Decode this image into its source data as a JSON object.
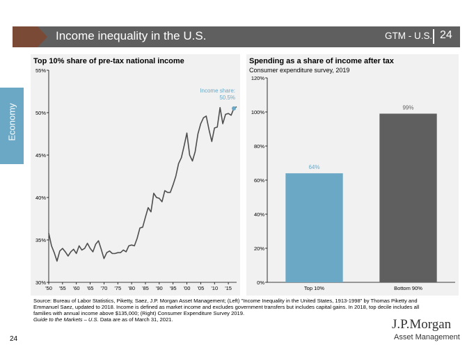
{
  "header": {
    "title": "Income inequality in the U.S.",
    "section": "GTM - U.S.",
    "page": "24",
    "bar_color": "#5f5f5f",
    "arrow_color": "#7a4a36"
  },
  "sidebar": {
    "label": "Economy",
    "color": "#6aa8c6"
  },
  "chart_data": [
    {
      "type": "line",
      "title": "Top 10% share of pre-tax national income",
      "xlabel": "",
      "ylabel": "",
      "xlim": [
        1950,
        2018
      ],
      "ylim": [
        30,
        55
      ],
      "y_ticks": [
        "30%",
        "35%",
        "40%",
        "45%",
        "50%",
        "55%"
      ],
      "x_ticks": [
        "'50",
        "'55",
        "'60",
        "'65",
        "'70",
        "'75",
        "'80",
        "'85",
        "'90",
        "'95",
        "'00",
        "'05",
        "'10",
        "'15"
      ],
      "annotation_label": "Income share:",
      "annotation_value": "50.5%",
      "line_color": "#4d4d4d",
      "marker_color": "#6aa8c6",
      "series": [
        {
          "name": "Top 10% share",
          "x": [
            1950,
            1951,
            1952,
            1953,
            1954,
            1955,
            1956,
            1957,
            1958,
            1959,
            1960,
            1961,
            1962,
            1963,
            1964,
            1965,
            1966,
            1967,
            1968,
            1969,
            1970,
            1971,
            1972,
            1973,
            1974,
            1975,
            1976,
            1977,
            1978,
            1979,
            1980,
            1981,
            1982,
            1983,
            1984,
            1985,
            1986,
            1987,
            1988,
            1989,
            1990,
            1991,
            1992,
            1993,
            1994,
            1995,
            1996,
            1997,
            1998,
            1999,
            2000,
            2001,
            2002,
            2003,
            2004,
            2005,
            2006,
            2007,
            2008,
            2009,
            2010,
            2011,
            2012,
            2013,
            2014,
            2015,
            2016,
            2017,
            2018
          ],
          "values": [
            35.8,
            34.3,
            33.5,
            32.5,
            33.7,
            34.0,
            33.6,
            33.1,
            33.6,
            33.9,
            33.4,
            34.3,
            33.8,
            34.0,
            34.6,
            34.0,
            33.6,
            34.5,
            34.9,
            33.9,
            32.8,
            33.5,
            33.7,
            33.4,
            33.4,
            33.5,
            33.5,
            33.8,
            33.6,
            34.3,
            34.4,
            34.3,
            35.2,
            36.4,
            36.5,
            37.7,
            38.8,
            38.3,
            40.5,
            40.0,
            39.9,
            39.5,
            40.8,
            40.6,
            40.6,
            41.5,
            42.5,
            44.0,
            44.7,
            46.1,
            47.6,
            45.0,
            44.3,
            45.4,
            47.5,
            48.7,
            49.4,
            49.6,
            48.0,
            46.6,
            48.2,
            48.3,
            50.6,
            48.7,
            49.8,
            49.9,
            49.7,
            50.5,
            50.7
          ]
        }
      ]
    },
    {
      "type": "bar",
      "title": "Spending as a share of income after tax",
      "subtitle": "Consumer expenditure survey, 2019",
      "xlabel": "",
      "ylabel": "",
      "ylim": [
        0,
        120
      ],
      "y_ticks": [
        "0%",
        "20%",
        "40%",
        "60%",
        "80%",
        "100%",
        "120%"
      ],
      "categories": [
        "Top 10%",
        "Bottom 90%"
      ],
      "values": [
        64,
        99
      ],
      "data_labels": [
        "64%",
        "99%"
      ],
      "colors": [
        "#6aa8c6",
        "#5f5f5f"
      ]
    }
  ],
  "footnote": {
    "source": "Source: Bureau of Labor Statistics, Piketty, Saez, J.P. Morgan Asset Management; (Left) \"Income Inequality in the United States, 1913-1998\" by Thomas Piketty and Emmanuel Saez, updated to 2018. Income is defined as market income and excludes government transfers but includes capital gains. In 2018, top decile includes all families with annual income above $135,000; (Right) Consumer Expenditure Survey 2019.",
    "guide_italic": "Guide to the Markets – U.S.",
    "guide_rest": " Data are as of March 31, 2021."
  },
  "page_number": "24",
  "logo": {
    "name": "J.P.Morgan",
    "subtitle": "Asset Management"
  }
}
